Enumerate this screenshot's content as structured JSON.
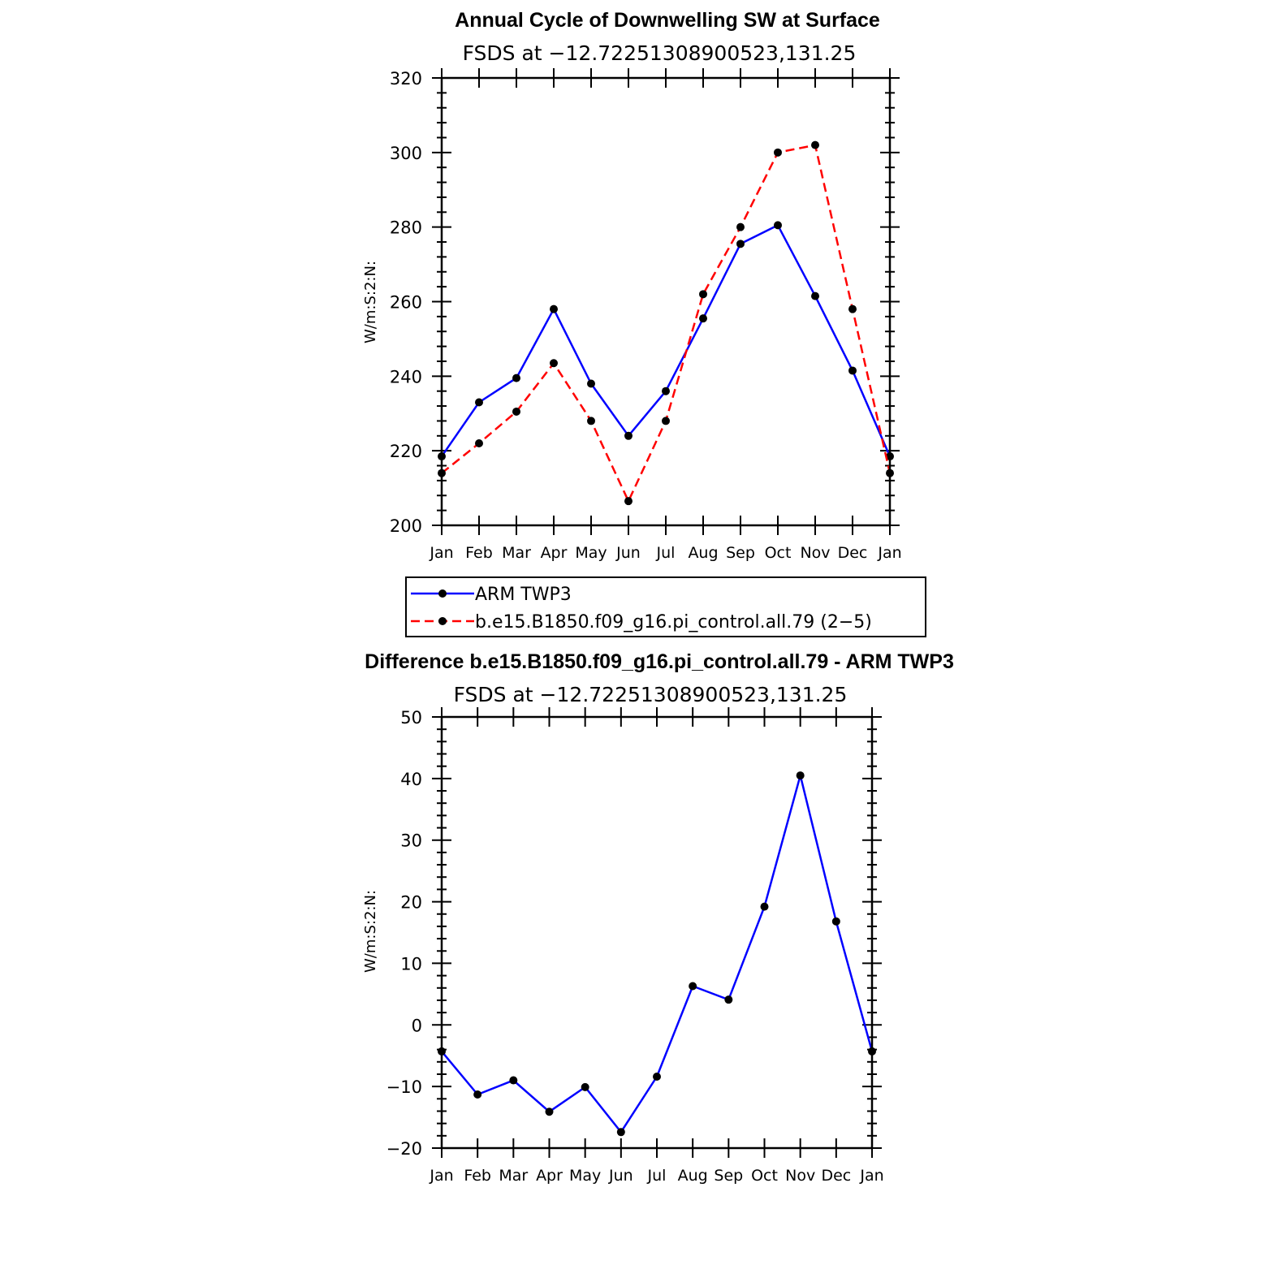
{
  "chart_data": [
    {
      "type": "line",
      "title": "Annual Cycle of Downwelling SW at Surface",
      "subtitle": "FSDS at −12.72251308900523,131.25",
      "ylabel": "W/m:S:2:N:",
      "xlabel": "",
      "categories": [
        "Jan",
        "Feb",
        "Mar",
        "Apr",
        "May",
        "Jun",
        "Jul",
        "Aug",
        "Sep",
        "Oct",
        "Nov",
        "Dec",
        "Jan"
      ],
      "ylim": [
        200,
        320
      ],
      "yticks": [
        200,
        220,
        240,
        260,
        280,
        300,
        320
      ],
      "yticklabels": [
        "200",
        "220",
        "240",
        "260",
        "280",
        "300",
        "320"
      ],
      "series": [
        {
          "name": "ARM TWP3",
          "color": "#0000ff",
          "dash": "solid",
          "values": [
            218.5,
            233.0,
            239.5,
            258.0,
            238.0,
            224.0,
            236.0,
            255.5,
            275.5,
            280.5,
            261.5,
            241.5,
            218.5
          ]
        },
        {
          "name": "b.e15.B1850.f09_g16.pi_control.all.79 (2−5)",
          "color": "#ff0000",
          "dash": "dashed",
          "values": [
            214.0,
            222.0,
            230.5,
            243.5,
            228.0,
            206.5,
            228.0,
            262.0,
            280.0,
            300.0,
            302.0,
            258.0,
            214.0
          ]
        }
      ],
      "legend": {
        "position": "below"
      }
    },
    {
      "type": "line",
      "title": "Difference b.e15.B1850.f09_g16.pi_control.all.79 - ARM TWP3",
      "subtitle": "FSDS at −12.72251308900523,131.25",
      "ylabel": "W/m:S:2:N:",
      "xlabel": "",
      "categories": [
        "Jan",
        "Feb",
        "Mar",
        "Apr",
        "May",
        "Jun",
        "Jul",
        "Aug",
        "Sep",
        "Oct",
        "Nov",
        "Dec",
        "Jan"
      ],
      "ylim": [
        -20,
        50
      ],
      "yticks": [
        -20,
        -10,
        0,
        10,
        20,
        30,
        40,
        50
      ],
      "yticklabels": [
        "−20",
        "−10",
        "0",
        "10",
        "20",
        "30",
        "40",
        "50"
      ],
      "series": [
        {
          "name": "Difference",
          "color": "#0000ff",
          "dash": "solid",
          "values": [
            -4.3,
            -11.3,
            -9.0,
            -14.1,
            -10.1,
            -17.4,
            -8.4,
            6.3,
            4.1,
            19.2,
            40.5,
            16.8,
            -4.3
          ]
        }
      ]
    }
  ]
}
